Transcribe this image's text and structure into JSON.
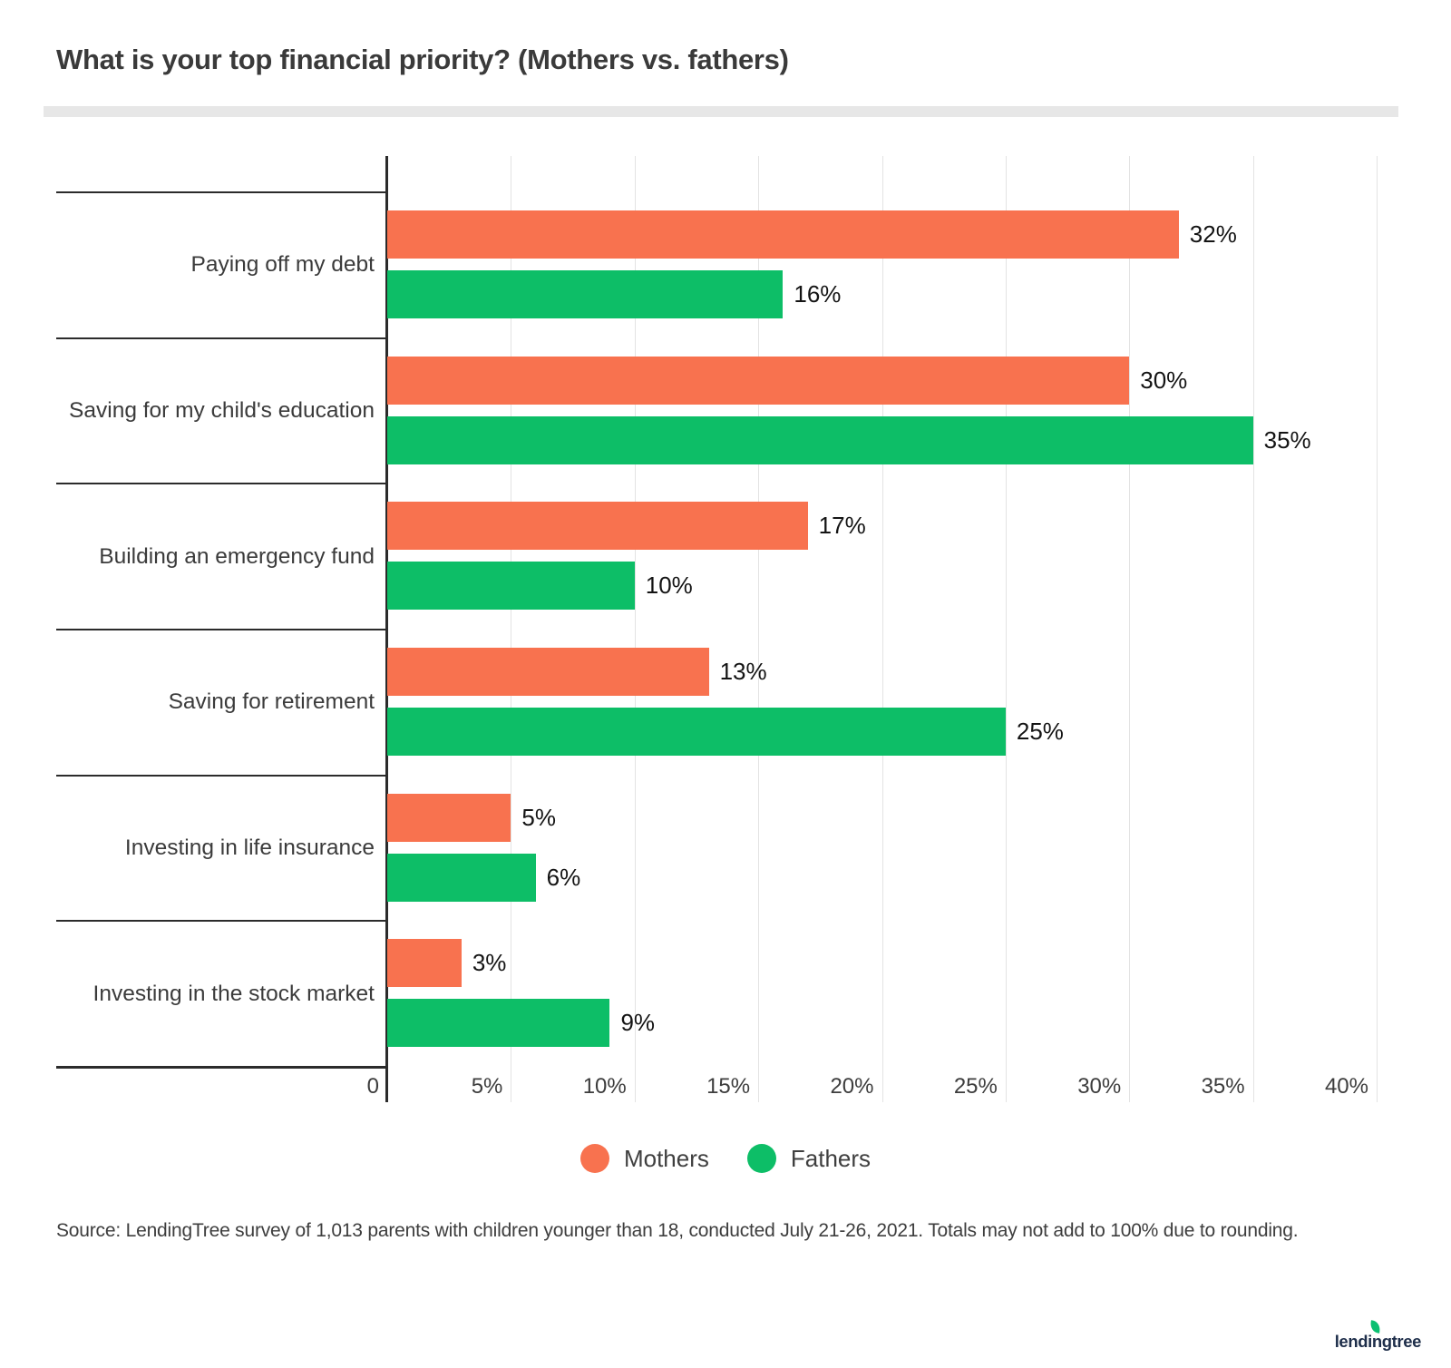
{
  "title": "What is your top financial priority? (Mothers vs. fathers)",
  "chart_data": {
    "type": "bar",
    "orientation": "horizontal",
    "title": "What is your top financial priority? (Mothers vs. fathers)",
    "categories": [
      "Paying off my debt",
      "Saving for my child's education",
      "Building an emergency fund",
      "Saving for retirement",
      "Investing in life insurance",
      "Investing in the stock market"
    ],
    "series": [
      {
        "name": "Mothers",
        "color": "#f8724f",
        "values": [
          32,
          30,
          17,
          13,
          5,
          3
        ],
        "labels": [
          "32%",
          "30%",
          "17%",
          "13%",
          "5%",
          "3%"
        ]
      },
      {
        "name": "Fathers",
        "color": "#0dbe67",
        "values": [
          16,
          35,
          10,
          25,
          6,
          9
        ],
        "labels": [
          "16%",
          "35%",
          "10%",
          "25%",
          "6%",
          "9%"
        ]
      }
    ],
    "x_ticks": [
      "0",
      "5%",
      "10%",
      "15%",
      "20%",
      "25%",
      "30%",
      "35%",
      "40%"
    ],
    "xlim": [
      0,
      40
    ],
    "grid": true,
    "legend_position": "bottom-center"
  },
  "source": "Source: LendingTree survey of 1,013 parents with children younger than 18, conducted July 21-26, 2021. Totals may not add to 100% due to rounding.",
  "logo_text": "lendingtree",
  "colors": {
    "mothers": "#f8724f",
    "fathers": "#0dbe67",
    "axis": "#2b2b2b",
    "gridline": "#e3e3e3",
    "divider": "#e7e7e7"
  }
}
